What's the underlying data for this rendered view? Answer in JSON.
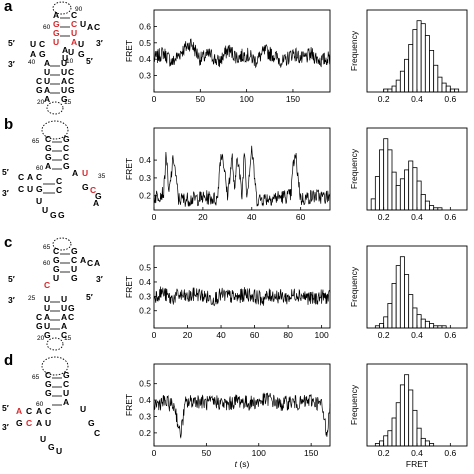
{
  "panels": [
    {
      "label": "a"
    },
    {
      "label": "b"
    },
    {
      "label": "c"
    },
    {
      "label": "d"
    }
  ],
  "rna": {
    "a": {
      "labels": [
        "5′",
        "3′",
        "3′",
        "5′",
        "60",
        "90",
        "40",
        "20",
        "15",
        "10",
        "A",
        "C",
        "G",
        "C",
        "G",
        "U",
        "U",
        "A",
        "U",
        "A",
        "C",
        "U",
        "C",
        "A",
        "G",
        "U",
        "G",
        "A",
        "U",
        "U",
        "A",
        "U",
        "U",
        "U",
        "U",
        "A",
        "A",
        "U",
        "A",
        "G",
        "C",
        "C",
        "G",
        "G",
        "C"
      ],
      "red": [
        2,
        3,
        4,
        5,
        6,
        7
      ]
    },
    "b": {
      "labels": [
        "65",
        "60",
        "5′",
        "3′",
        "35",
        "C",
        "G",
        "G",
        "C",
        "G",
        "C",
        "A",
        "G",
        "C",
        "A",
        "C",
        "C",
        "U",
        "G",
        "A",
        "U",
        "C",
        "G",
        "G",
        "A",
        "U",
        "U",
        "G",
        "G",
        "C",
        "C"
      ],
      "red": [
        20,
        21
      ]
    },
    "c": {
      "labels": [
        "65",
        "60",
        "25",
        "5′",
        "3′",
        "3′",
        "5′",
        "20",
        "15",
        "C",
        "G",
        "G",
        "C",
        "G",
        "U",
        "A",
        "C",
        "A",
        "U",
        "C",
        "G",
        "U",
        "U",
        "U",
        "U",
        "A",
        "A",
        "U",
        "A",
        "G",
        "C",
        "C",
        "G",
        "G",
        "C"
      ],
      "red": [
        13
      ]
    },
    "d": {
      "labels": [
        "65",
        "60",
        "5′",
        "3′",
        "C",
        "G",
        "G",
        "C",
        "G",
        "U",
        "A",
        "C",
        "A",
        "C",
        "G",
        "C",
        "A",
        "U",
        "A",
        "U",
        "U",
        "G",
        "U",
        "G",
        "C"
      ],
      "red": [
        10,
        15
      ]
    }
  },
  "chart_data": [
    {
      "type": "line",
      "panel": "a",
      "title": "",
      "xlabel": "",
      "ylabel": "FRET",
      "xlim": [
        0,
        190
      ],
      "ylim": [
        0.2,
        0.7
      ],
      "xticks": [
        0,
        50,
        100,
        150
      ],
      "yticks": [
        0.3,
        0.4,
        0.5,
        0.6
      ],
      "x": [
        0,
        10,
        20,
        30,
        40,
        50,
        60,
        70,
        80,
        90,
        100,
        110,
        120,
        130,
        140,
        150,
        160,
        170,
        180,
        190
      ],
      "y": [
        0.4,
        0.44,
        0.38,
        0.45,
        0.5,
        0.4,
        0.43,
        0.38,
        0.46,
        0.41,
        0.43,
        0.39,
        0.45,
        0.42,
        0.38,
        0.44,
        0.4,
        0.43,
        0.39,
        0.41
      ]
    },
    {
      "type": "bar",
      "panel": "a",
      "title": "",
      "xlabel": "",
      "ylabel": "Frequency",
      "xticks": [
        0.2,
        0.4,
        0.6
      ],
      "bin_start": 0.15,
      "bin_width": 0.025,
      "values": [
        0,
        0,
        1,
        1,
        2,
        4,
        7,
        11,
        16,
        21,
        24,
        23,
        19,
        14,
        9,
        5,
        3,
        2,
        1,
        1,
        0
      ]
    },
    {
      "type": "line",
      "panel": "b",
      "title": "",
      "xlabel": "",
      "ylabel": "FRET",
      "xlim": [
        0,
        72
      ],
      "ylim": [
        0.12,
        0.58
      ],
      "xticks": [
        0,
        20,
        40,
        60
      ],
      "yticks": [
        0.2,
        0.3,
        0.4
      ],
      "x": [
        0,
        4,
        5,
        6,
        8,
        10,
        14,
        22,
        26,
        27,
        28,
        30,
        32,
        33,
        34,
        36,
        37,
        38,
        40,
        42,
        50,
        56,
        57,
        58,
        60,
        66,
        70,
        72
      ],
      "y": [
        0.19,
        0.22,
        0.45,
        0.2,
        0.42,
        0.18,
        0.18,
        0.19,
        0.18,
        0.4,
        0.44,
        0.2,
        0.42,
        0.2,
        0.45,
        0.19,
        0.47,
        0.2,
        0.47,
        0.18,
        0.19,
        0.2,
        0.38,
        0.42,
        0.18,
        0.2,
        0.19,
        0.2
      ]
    },
    {
      "type": "bar",
      "panel": "b",
      "title": "",
      "xlabel": "",
      "ylabel": "Frequency",
      "xticks": [
        0.2,
        0.4,
        0.6
      ],
      "bin_start": 0.125,
      "bin_width": 0.025,
      "values": [
        5,
        15,
        27,
        32,
        27,
        17,
        11,
        14,
        18,
        22,
        19,
        13,
        7,
        4,
        2,
        1,
        1,
        0,
        0
      ]
    },
    {
      "type": "line",
      "panel": "c",
      "title": "",
      "xlabel": "",
      "ylabel": "FRET",
      "xlim": [
        0,
        105
      ],
      "ylim": [
        0.08,
        0.65
      ],
      "xticks": [
        0,
        20,
        40,
        60,
        80,
        100
      ],
      "yticks": [
        0.2,
        0.3,
        0.4,
        0.5
      ],
      "x": [
        0,
        5,
        10,
        15,
        20,
        25,
        30,
        35,
        40,
        45,
        50,
        55,
        60,
        65,
        70,
        75,
        80,
        85,
        90,
        95,
        100,
        105
      ],
      "y": [
        0.3,
        0.33,
        0.28,
        0.31,
        0.29,
        0.32,
        0.3,
        0.28,
        0.31,
        0.3,
        0.29,
        0.32,
        0.3,
        0.28,
        0.31,
        0.3,
        0.29,
        0.32,
        0.3,
        0.28,
        0.3,
        0.29
      ]
    },
    {
      "type": "bar",
      "panel": "c",
      "title": "",
      "xlabel": "",
      "ylabel": "Frequency",
      "xticks": [
        0.2,
        0.4,
        0.6
      ],
      "bin_start": 0.15,
      "bin_width": 0.025,
      "values": [
        1,
        2,
        5,
        11,
        20,
        28,
        32,
        24,
        15,
        9,
        6,
        4,
        3,
        2,
        1,
        1,
        1,
        0
      ]
    },
    {
      "type": "line",
      "panel": "d",
      "title": "",
      "xlabel": "t (s)",
      "ylabel": "FRET",
      "xlim": [
        0,
        168
      ],
      "ylim": [
        0.12,
        0.62
      ],
      "xticks": [
        0,
        50,
        100,
        150
      ],
      "yticks": [
        0.2,
        0.3,
        0.4,
        0.5
      ],
      "x": [
        0,
        10,
        20,
        25,
        30,
        40,
        50,
        60,
        70,
        80,
        90,
        100,
        110,
        120,
        130,
        140,
        150,
        160,
        165,
        168
      ],
      "y": [
        0.37,
        0.39,
        0.36,
        0.18,
        0.38,
        0.4,
        0.38,
        0.39,
        0.37,
        0.4,
        0.38,
        0.39,
        0.41,
        0.37,
        0.39,
        0.38,
        0.4,
        0.37,
        0.2,
        0.35
      ]
    },
    {
      "type": "bar",
      "panel": "d",
      "title": "",
      "xlabel": "FRET",
      "ylabel": "Frequency",
      "xticks": [
        0.2,
        0.4,
        0.6
      ],
      "bin_start": 0.15,
      "bin_width": 0.025,
      "values": [
        1,
        2,
        4,
        6,
        11,
        17,
        24,
        28,
        22,
        14,
        7,
        3,
        2,
        1,
        0,
        0
      ]
    }
  ]
}
